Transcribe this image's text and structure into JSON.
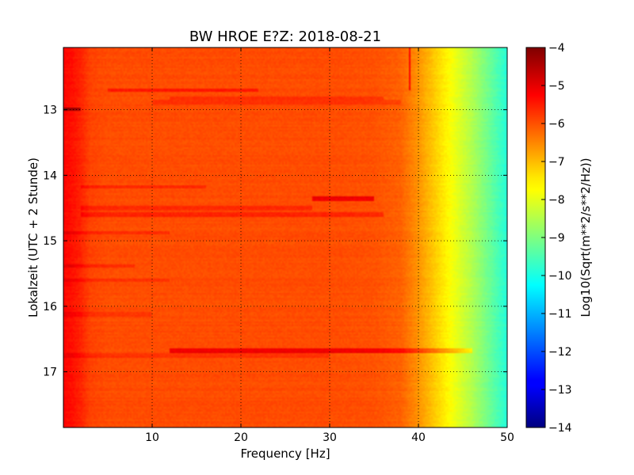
{
  "chart_data": {
    "type": "heatmap",
    "title": "BW HROE E?Z: 2018-08-21",
    "xlabel": "Frequency [Hz]",
    "ylabel": "Lokalzeit (UTC + 2 Stunde)",
    "xlim": [
      0,
      50
    ],
    "ylim": [
      17.85,
      12.05
    ],
    "y_axis_inverted": true,
    "x_ticks": [
      10,
      20,
      30,
      40,
      50
    ],
    "x_tick_labels": [
      "10",
      "20",
      "30",
      "40",
      "50"
    ],
    "y_ticks": [
      13,
      14,
      15,
      16,
      17
    ],
    "y_tick_labels": [
      "13",
      "14",
      "15",
      "16",
      "17"
    ],
    "grid": true,
    "colormap": "jet",
    "colorbar": {
      "label": "Log10(Sqrt(m**2/s**2/Hz))",
      "range": [
        -14,
        -4
      ],
      "ticks": [
        -4,
        -5,
        -6,
        -7,
        -8,
        -9,
        -10,
        -11,
        -12,
        -13,
        -14
      ],
      "tick_labels": [
        "−4",
        "−5",
        "−6",
        "−7",
        "−8",
        "−9",
        "−10",
        "−11",
        "−12",
        "−13",
        "−14"
      ]
    },
    "spectral_profile": {
      "frequency_hz": [
        0,
        1,
        2,
        3,
        5,
        10,
        20,
        30,
        35,
        38,
        40,
        42,
        44,
        46,
        48,
        50
      ],
      "value": [
        -5.3,
        -5.4,
        -5.6,
        -5.9,
        -6.0,
        -6.0,
        -6.0,
        -6.0,
        -6.05,
        -6.2,
        -6.7,
        -7.3,
        -7.9,
        -8.5,
        -9.2,
        -9.9
      ]
    },
    "bands": [
      {
        "time": 12.7,
        "f_start": 5,
        "f_end": 22,
        "delta": 0.5
      },
      {
        "time": 12.82,
        "f_start": 12,
        "f_end": 36,
        "delta": 0.35
      },
      {
        "time": 12.88,
        "f_start": 10,
        "f_end": 38,
        "delta": 0.3
      },
      {
        "time": 13.0,
        "f_start": 0,
        "f_end": 2,
        "delta": 1.2
      },
      {
        "time": 14.18,
        "f_start": 2,
        "f_end": 16,
        "delta": 0.35
      },
      {
        "time": 14.36,
        "f_start": 28,
        "f_end": 35,
        "delta": 0.9
      },
      {
        "time": 14.5,
        "f_start": 2,
        "f_end": 28,
        "delta": 0.35
      },
      {
        "time": 14.6,
        "f_start": 2,
        "f_end": 36,
        "delta": 0.45
      },
      {
        "time": 14.88,
        "f_start": 0,
        "f_end": 12,
        "delta": 0.3
      },
      {
        "time": 15.38,
        "f_start": 0,
        "f_end": 8,
        "delta": 0.35
      },
      {
        "time": 15.6,
        "f_start": 0,
        "f_end": 12,
        "delta": 0.25
      },
      {
        "time": 16.12,
        "f_start": 0,
        "f_end": 10,
        "delta": 0.25
      },
      {
        "time": 16.68,
        "f_start": 12,
        "f_end": 46,
        "delta": 0.9
      },
      {
        "time": 16.75,
        "f_start": 0,
        "f_end": 30,
        "delta": 0.3
      }
    ],
    "vertical_lines": [
      {
        "frequency": 39,
        "t_start": 12.05,
        "t_end": 12.7,
        "delta": 1.2
      }
    ]
  }
}
